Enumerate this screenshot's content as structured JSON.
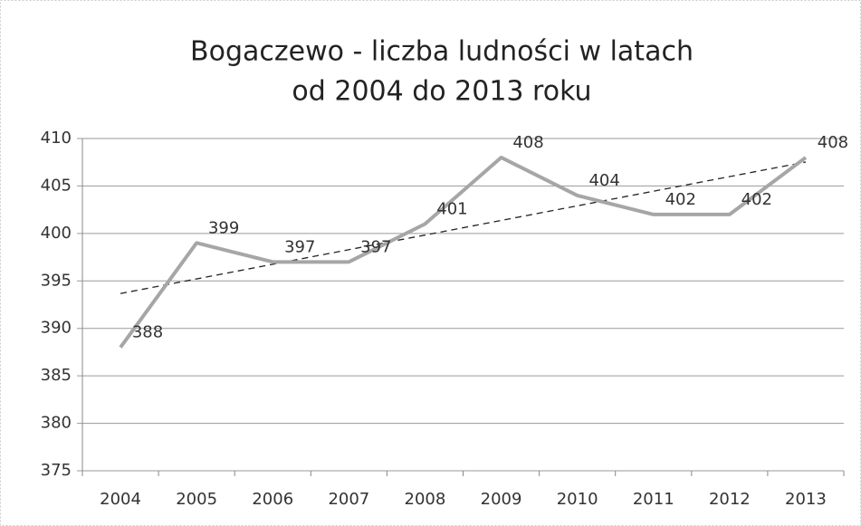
{
  "chart_data": {
    "type": "line",
    "title": [
      "Bogaczewo - liczba ludności w latach",
      "od 2004 do 2013 roku"
    ],
    "categories": [
      "2004",
      "2005",
      "2006",
      "2007",
      "2008",
      "2009",
      "2010",
      "2011",
      "2012",
      "2013"
    ],
    "series": [
      {
        "name": "Bogaczewo",
        "color": "#a6a6a6",
        "values": [
          388,
          399,
          397,
          397,
          401,
          408,
          404,
          402,
          402,
          408
        ]
      }
    ],
    "ylim": [
      375,
      410
    ],
    "yticks": [
      375,
      380,
      385,
      390,
      395,
      400,
      405,
      410
    ],
    "grid": true,
    "trendline": true,
    "data_labels": true
  }
}
